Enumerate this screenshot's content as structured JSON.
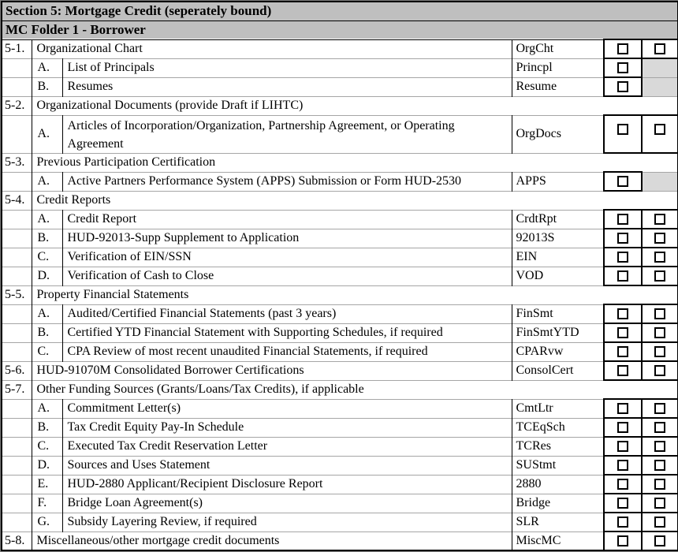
{
  "colors": {
    "header_bg": "#bfbfbf",
    "shade_bg": "#d9d9d9",
    "grid": "#a6a6a6",
    "ink": "#000000"
  },
  "checkbox_state": "unchecked",
  "rows": [
    {
      "type": "band",
      "label": "Section 5: Mortgage Credit (seperately bound)"
    },
    {
      "type": "band",
      "label": "MC Folder 1 - Borrower"
    },
    {
      "type": "item",
      "num": "5-1.",
      "desc": "Organizational Chart",
      "code": "OrgCht",
      "checks": [
        "unchecked",
        "unchecked"
      ]
    },
    {
      "type": "sub",
      "letter": "A.",
      "desc": "List of Principals",
      "code": "Princpl",
      "checks": [
        "unchecked",
        "shaded"
      ]
    },
    {
      "type": "sub",
      "letter": "B.",
      "desc": "Resumes",
      "code": "Resume",
      "checks": [
        "unchecked",
        "shaded"
      ]
    },
    {
      "type": "group",
      "num": "5-2.",
      "desc": "Organizational Documents (provide Draft if LIHTC)"
    },
    {
      "type": "sub",
      "letter": "A.",
      "desc": "Articles of Incorporation/Organization, Partnership Agreement, or Operating Agreement",
      "code": "OrgDocs",
      "checks": [
        "unchecked",
        "unchecked"
      ],
      "tall": true
    },
    {
      "type": "group",
      "num": "5-3.",
      "desc": "Previous Participation Certification"
    },
    {
      "type": "sub",
      "letter": "A.",
      "desc": "Active Partners Performance System (APPS) Submission or Form HUD-2530",
      "code": "APPS",
      "checks": [
        "unchecked",
        "shaded"
      ]
    },
    {
      "type": "group",
      "num": "5-4.",
      "desc": "Credit Reports"
    },
    {
      "type": "sub",
      "letter": "A.",
      "desc": "Credit Report",
      "code": "CrdtRpt",
      "checks": [
        "unchecked",
        "unchecked"
      ]
    },
    {
      "type": "sub",
      "letter": "B.",
      "desc": "HUD-92013-Supp Supplement to Application",
      "code": "92013S",
      "checks": [
        "unchecked",
        "unchecked"
      ]
    },
    {
      "type": "sub",
      "letter": "C.",
      "desc": "Verification of EIN/SSN",
      "code": "EIN",
      "checks": [
        "unchecked",
        "unchecked"
      ]
    },
    {
      "type": "sub",
      "letter": "D.",
      "desc": "Verification of Cash to Close",
      "code": "VOD",
      "checks": [
        "unchecked",
        "unchecked"
      ]
    },
    {
      "type": "group",
      "num": "5-5.",
      "desc": "Property Financial Statements"
    },
    {
      "type": "sub",
      "letter": "A.",
      "desc": "Audited/Certified Financial Statements (past 3 years)",
      "code": "FinSmt",
      "checks": [
        "unchecked",
        "unchecked"
      ]
    },
    {
      "type": "sub",
      "letter": "B.",
      "desc": "Certified YTD Financial Statement with Supporting Schedules, if required",
      "code": "FinSmtYTD",
      "checks": [
        "unchecked",
        "unchecked"
      ]
    },
    {
      "type": "sub",
      "letter": "C.",
      "desc": "CPA Review of most recent unaudited Financial Statements, if required",
      "code": "CPARvw",
      "checks": [
        "unchecked",
        "unchecked"
      ]
    },
    {
      "type": "item",
      "num": "5-6.",
      "desc": "HUD-91070M Consolidated Borrower Certifications",
      "code": "ConsolCert",
      "checks": [
        "unchecked",
        "unchecked"
      ]
    },
    {
      "type": "group",
      "num": "5-7.",
      "desc": "Other Funding Sources (Grants/Loans/Tax Credits), if applicable"
    },
    {
      "type": "sub",
      "letter": "A.",
      "desc": "Commitment Letter(s)",
      "code": "CmtLtr",
      "checks": [
        "unchecked",
        "unchecked"
      ]
    },
    {
      "type": "sub",
      "letter": "B.",
      "desc": "Tax Credit Equity Pay-In Schedule",
      "code": "TCEqSch",
      "checks": [
        "unchecked",
        "unchecked"
      ]
    },
    {
      "type": "sub",
      "letter": "C.",
      "desc": "Executed Tax Credit Reservation Letter",
      "code": "TCRes",
      "checks": [
        "unchecked",
        "unchecked"
      ]
    },
    {
      "type": "sub",
      "letter": "D.",
      "desc": "Sources and Uses Statement",
      "code": "SUStmt",
      "checks": [
        "unchecked",
        "unchecked"
      ]
    },
    {
      "type": "sub",
      "letter": "E.",
      "desc": "HUD-2880 Applicant/Recipient Disclosure Report",
      "code": "2880",
      "checks": [
        "unchecked",
        "unchecked"
      ]
    },
    {
      "type": "sub",
      "letter": "F.",
      "desc": "Bridge Loan Agreement(s)",
      "code": "Bridge",
      "checks": [
        "unchecked",
        "unchecked"
      ]
    },
    {
      "type": "sub",
      "letter": "G.",
      "desc": "Subsidy Layering Review, if required",
      "code": "SLR",
      "checks": [
        "unchecked",
        "unchecked"
      ]
    },
    {
      "type": "item",
      "num": "5-8.",
      "desc": "Miscellaneous/other mortgage credit documents",
      "code": "MiscMC",
      "checks": [
        "unchecked",
        "unchecked"
      ]
    }
  ]
}
